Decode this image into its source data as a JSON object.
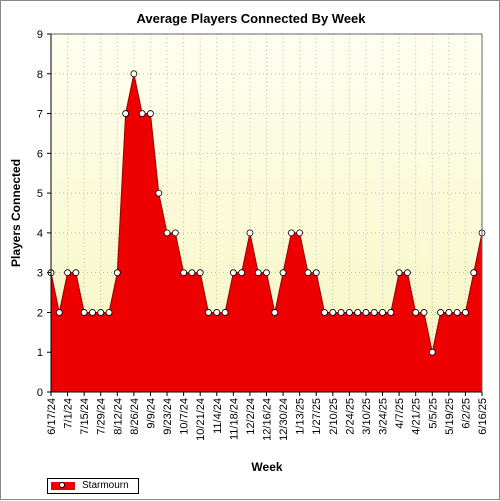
{
  "chart_data": {
    "type": "area",
    "title": "Average Players Connected By Week",
    "xlabel": "Week",
    "ylabel": "Players Connected",
    "ylim": [
      0,
      9
    ],
    "yticks": [
      0,
      1,
      2,
      3,
      4,
      5,
      6,
      7,
      8,
      9
    ],
    "grid": true,
    "legend_position": "bottom-left",
    "colors": {
      "area_fill": "#ee0000",
      "line": "#990000",
      "plot_bg_top": "#fffff0",
      "plot_bg_bottom": "#f5f5c0",
      "grid": "#bbbbbb"
    },
    "x_tick_labels": [
      "6/17/24",
      "7/1/24",
      "7/15/24",
      "7/29/24",
      "8/12/24",
      "8/26/24",
      "9/9/24",
      "9/23/24",
      "10/7/24",
      "10/21/24",
      "11/4/24",
      "11/18/24",
      "12/2/24",
      "12/16/24",
      "12/30/24",
      "1/13/25",
      "1/27/25",
      "2/10/25",
      "2/24/25",
      "3/10/25",
      "3/24/25",
      "4/7/25",
      "4/21/25",
      "5/5/25",
      "5/19/25",
      "6/2/25",
      "6/16/25"
    ],
    "series": [
      {
        "name": "Starmourn",
        "x": [
          "6/17/24",
          "6/24/24",
          "7/1/24",
          "7/8/24",
          "7/15/24",
          "7/22/24",
          "7/29/24",
          "8/5/24",
          "8/12/24",
          "8/19/24",
          "8/26/24",
          "9/2/24",
          "9/9/24",
          "9/16/24",
          "9/23/24",
          "9/30/24",
          "10/7/24",
          "10/14/24",
          "10/21/24",
          "10/28/24",
          "11/4/24",
          "11/11/24",
          "11/18/24",
          "11/25/24",
          "12/2/24",
          "12/9/24",
          "12/16/24",
          "12/23/24",
          "12/30/24",
          "1/6/25",
          "1/13/25",
          "1/20/25",
          "1/27/25",
          "2/3/25",
          "2/10/25",
          "2/17/25",
          "2/24/25",
          "3/3/25",
          "3/10/25",
          "3/17/25",
          "3/24/25",
          "3/31/25",
          "4/7/25",
          "4/14/25",
          "4/21/25",
          "4/28/25",
          "5/5/25",
          "5/12/25",
          "5/19/25",
          "5/26/25",
          "6/2/25",
          "6/9/25",
          "6/16/25"
        ],
        "values": [
          3,
          2,
          3,
          3,
          2,
          2,
          2,
          2,
          3,
          7,
          8,
          7,
          7,
          5,
          4,
          4,
          3,
          3,
          3,
          2,
          2,
          2,
          3,
          3,
          4,
          3,
          3,
          2,
          3,
          4,
          4,
          3,
          3,
          2,
          2,
          2,
          2,
          2,
          2,
          2,
          2,
          2,
          3,
          3,
          2,
          2,
          1,
          2,
          2,
          2,
          2,
          3,
          4
        ]
      }
    ]
  }
}
